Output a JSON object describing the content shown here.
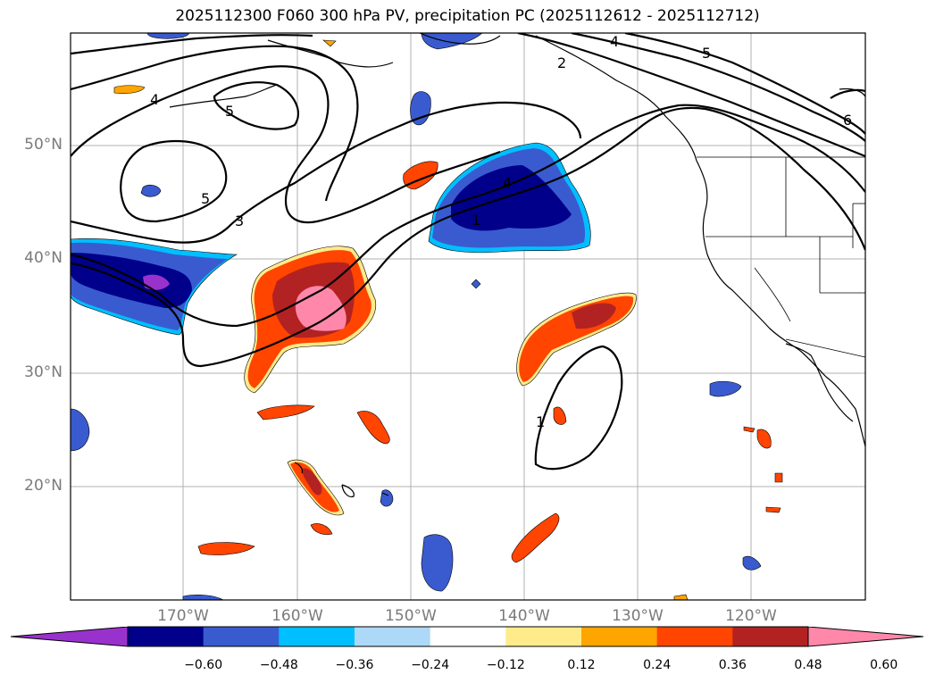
{
  "title": "2025112300 F060 300 hPa PV, precipitation PC (2025112612 - 2025112712)",
  "lat_labels": [
    "50°N",
    "40°N",
    "30°N",
    "20°N"
  ],
  "lon_labels": [
    "170°W",
    "160°W",
    "150°W",
    "140°W",
    "130°W",
    "120°W"
  ],
  "contour_labels": [
    "4",
    "5",
    "5",
    "3",
    "4",
    "4",
    "2",
    "5",
    "6",
    "1",
    "1"
  ],
  "colorbar": {
    "ticks": [
      "−0.60",
      "−0.48",
      "−0.36",
      "−0.24",
      "−0.12",
      "0.12",
      "0.24",
      "0.36",
      "0.48",
      "0.60"
    ],
    "colors": [
      "#9932cc",
      "#00008b",
      "#3a5bcf",
      "#00bfff",
      "#add8f7",
      "#ffffff",
      "#ffeb8a",
      "#ffa500",
      "#ff4500",
      "#b22222",
      "#ff88aa"
    ]
  },
  "colors": {
    "neg_strong": "#00008b",
    "neg_mid": "#3a5bcf",
    "neg_light": "#00bfff",
    "neg_pale": "#add8f7",
    "neg_extreme": "#9932cc",
    "pos_light": "#ffeb8a",
    "pos_mid": "#ffa500",
    "pos_strong": "#ff4500",
    "pos_dark": "#b22222",
    "pos_extreme": "#ff88aa",
    "grid": "#b0b0b0"
  }
}
